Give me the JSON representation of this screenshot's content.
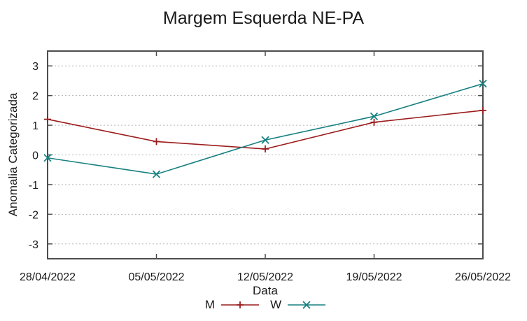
{
  "chart_data": {
    "type": "line",
    "title": "Margem Esquerda NE-PA",
    "xlabel": "Data",
    "ylabel": "Anomalia Categorizada",
    "categories": [
      "28/04/2022",
      "05/05/2022",
      "12/05/2022",
      "19/05/2022",
      "26/05/2022"
    ],
    "series": [
      {
        "name": "M",
        "color": "#9c1c1c",
        "marker": "plus",
        "values": [
          1.2,
          0.45,
          0.2,
          1.1,
          1.5
        ]
      },
      {
        "name": "W",
        "color": "#178080",
        "marker": "cross",
        "values": [
          -0.1,
          -0.65,
          0.5,
          1.3,
          2.4
        ]
      }
    ],
    "ylim": [
      -3.5,
      3.5
    ],
    "yticks": [
      3,
      2,
      1,
      0,
      -1,
      -2,
      -3
    ],
    "grid": "horizontal-dotted",
    "legend_position": "bottom-center",
    "axis_color": "#4d4d4d",
    "grid_color": "#b3b3b3",
    "text_color": "#1a1a1a"
  }
}
